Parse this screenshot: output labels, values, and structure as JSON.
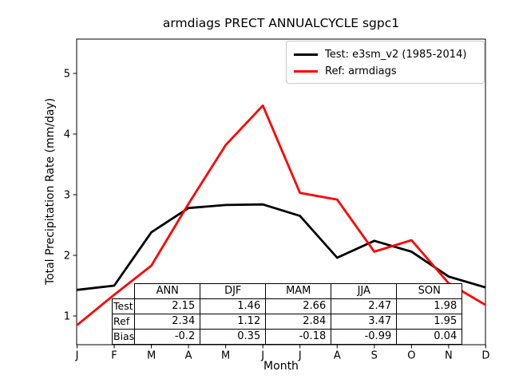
{
  "figure": {
    "title": "armdiags PRECT ANNUALCYCLE sgpc1",
    "xlabel": "Month",
    "ylabel": "Total Precipitation Rate (mm/day)"
  },
  "legend": {
    "items": [
      {
        "label": "Test: e3sm_v2 (1985-2014)",
        "color": "#000000",
        "key": "test"
      },
      {
        "label": "Ref: armdiags",
        "color": "#ff0000",
        "key": "ref"
      }
    ]
  },
  "chart_data": {
    "type": "line",
    "title": "armdiags PRECT ANNUALCYCLE sgpc1",
    "xlabel": "Month",
    "ylabel": "Total Precipitation Rate (mm/day)",
    "x_tick_labels": [
      "J",
      "F",
      "M",
      "A",
      "M",
      "J",
      "J",
      "A",
      "S",
      "O",
      "N",
      "D"
    ],
    "y_ticks": [
      1,
      2,
      3,
      4,
      5
    ],
    "ylim": [
      0.5,
      5.6
    ],
    "grid": false,
    "legend_position": "upper right",
    "series": [
      {
        "name": "Test: e3sm_v2 (1985-2014)",
        "key": "test",
        "color": "#000000",
        "values": [
          1.43,
          1.5,
          2.38,
          2.78,
          2.83,
          2.84,
          2.65,
          1.96,
          2.24,
          2.06,
          1.65,
          1.47
        ]
      },
      {
        "name": "Ref: armdiags",
        "key": "ref",
        "color": "#ff0000",
        "values": [
          0.85,
          1.35,
          1.83,
          2.85,
          3.82,
          4.47,
          3.03,
          2.92,
          2.06,
          2.25,
          1.54,
          1.18
        ]
      }
    ],
    "table": {
      "col_headers": [
        "ANN",
        "DJF",
        "MAM",
        "JJA",
        "SON"
      ],
      "rows": [
        {
          "label": "Test",
          "values": [
            "2.15",
            "1.46",
            "2.66",
            "2.47",
            "1.98"
          ]
        },
        {
          "label": "Ref",
          "values": [
            "2.34",
            "1.12",
            "2.84",
            "3.47",
            "1.95"
          ]
        },
        {
          "label": "Bias",
          "values": [
            "-0.2",
            "0.35",
            "-0.18",
            "-0.99",
            "0.04"
          ]
        }
      ]
    }
  }
}
